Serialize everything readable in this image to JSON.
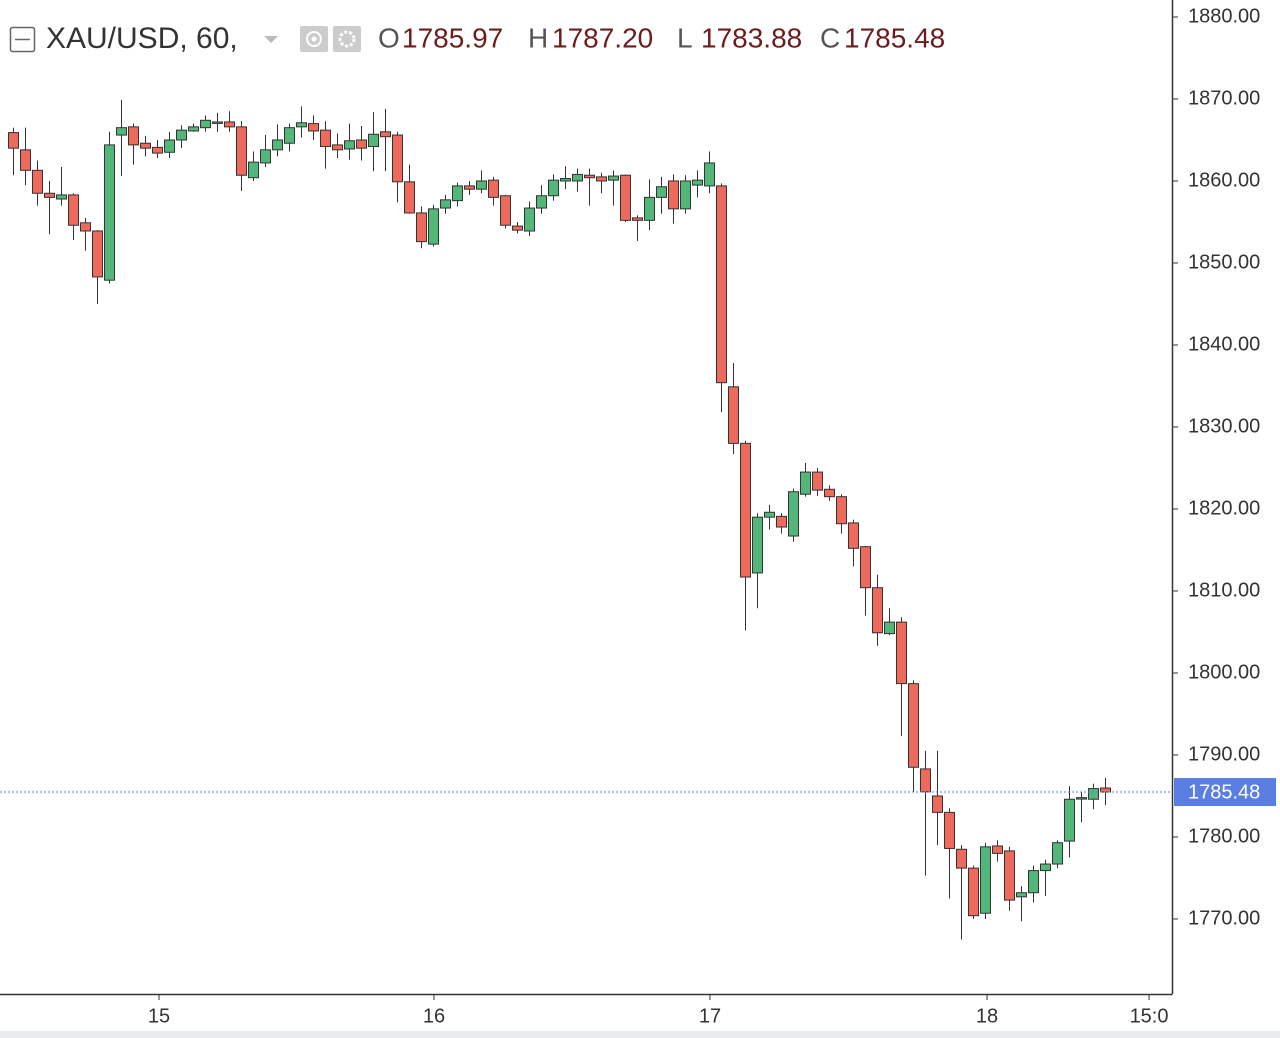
{
  "chart_data": {
    "type": "candlestick",
    "symbol": "XAU/USD, 60,",
    "legend_items": [
      {
        "label": "O",
        "value": "1785.97"
      },
      {
        "label": "H",
        "value": "1787.20"
      },
      {
        "label": "L",
        "value": "1783.88"
      },
      {
        "label": "C",
        "value": "1785.48"
      }
    ],
    "open": [
      1865.9,
      1863.8,
      1861.3,
      1858.5,
      1857.8,
      1858.3,
      1854.9,
      1853.9,
      1847.9,
      1865.6,
      1866.6,
      1864.6,
      1864.1,
      1863.5,
      1865.0,
      1866.1,
      1866.5,
      1867.1,
      1867.2,
      1866.6,
      1860.4,
      1862.2,
      1863.8,
      1864.6,
      1866.6,
      1867.0,
      1866.2,
      1864.4,
      1863.9,
      1865.0,
      1864.2,
      1866.0,
      1865.6,
      1859.9,
      1856.1,
      1852.3,
      1856.7,
      1857.6,
      1859.4,
      1859.0,
      1860.1,
      1858.2,
      1854.5,
      1853.9,
      1856.7,
      1858.2,
      1860.0,
      1860.0,
      1860.7,
      1860.5,
      1860.1,
      1860.7,
      1855.5,
      1855.2,
      1858.0,
      1860.0,
      1856.6,
      1859.5,
      1859.4,
      1859.4,
      1834.9,
      1828.0,
      1812.2,
      1819.0,
      1819.1,
      1816.7,
      1821.8,
      1824.5,
      1822.4,
      1821.5,
      1818.3,
      1815.4,
      1810.4,
      1804.8,
      1806.2,
      1798.7,
      1788.3,
      1785.0,
      1783.0,
      1778.5,
      1776.2,
      1770.7,
      1778.9,
      1778.3,
      1772.7,
      1773.2,
      1775.9,
      1776.7,
      1779.5,
      1784.7,
      1784.6,
      1785.97
    ],
    "high": [
      1866.5,
      1866.5,
      1862.5,
      1860,
      1861.7,
      1858.5,
      1855.5,
      1854,
      1866,
      1869.9,
      1867,
      1865.5,
      1865,
      1866,
      1866.8,
      1867,
      1868,
      1868.3,
      1868.5,
      1867.3,
      1863.6,
      1865.6,
      1866.9,
      1867,
      1869.1,
      1868,
      1867.3,
      1865.8,
      1867,
      1866.7,
      1868.4,
      1868.8,
      1866,
      1862,
      1856.9,
      1857.1,
      1858.3,
      1859.8,
      1860,
      1861.3,
      1860.5,
      1858.3,
      1855,
      1857.5,
      1859.5,
      1860.8,
      1861.8,
      1861.5,
      1861.5,
      1861,
      1861.3,
      1860.8,
      1855.8,
      1860.2,
      1860.5,
      1860.8,
      1860.7,
      1861.3,
      1863.6,
      1859.7,
      1837.8,
      1828.3,
      1819.5,
      1820.5,
      1819.5,
      1822.5,
      1825.6,
      1825,
      1822.9,
      1821.8,
      1818.7,
      1815.5,
      1812,
      1807.9,
      1806.8,
      1799.1,
      1790.5,
      1790.5,
      1783.5,
      1779,
      1776.5,
      1779.3,
      1779.6,
      1778.8,
      1774,
      1776.5,
      1777.2,
      1779.6,
      1786.2,
      1785.5,
      1786.5,
      1787.2
    ],
    "low": [
      1860.7,
      1859.5,
      1857,
      1853.5,
      1857,
      1852.8,
      1851.5,
      1845,
      1847.5,
      1860.6,
      1862,
      1863,
      1862.8,
      1862.8,
      1864,
      1866,
      1866,
      1866,
      1866,
      1858.8,
      1860,
      1861.7,
      1863,
      1863.6,
      1865.3,
      1865,
      1861.5,
      1862.8,
      1862.6,
      1862.5,
      1861.2,
      1861.2,
      1857.4,
      1856,
      1851.8,
      1852,
      1856,
      1856.9,
      1858.3,
      1858.5,
      1857,
      1854.2,
      1853.6,
      1853.3,
      1856,
      1857.6,
      1859,
      1858.7,
      1857,
      1858.5,
      1857,
      1855,
      1852.7,
      1854,
      1856,
      1854.8,
      1856,
      1858,
      1858.5,
      1831.8,
      1826.7,
      1805.2,
      1807.9,
      1817.5,
      1817,
      1816,
      1821.5,
      1821.6,
      1821,
      1817,
      1813,
      1807,
      1803.3,
      1804.6,
      1792.3,
      1785.5,
      1775.3,
      1779,
      1772.5,
      1767.5,
      1770,
      1770,
      1777,
      1771,
      1769.7,
      1772,
      1772.8,
      1776.2,
      1777.5,
      1781.8,
      1783.4,
      1783.88
    ],
    "close": [
      1864.0,
      1861.3,
      1858.5,
      1858.0,
      1858.3,
      1854.6,
      1853.9,
      1848.3,
      1864.4,
      1866.5,
      1864.4,
      1864.0,
      1863.4,
      1865.0,
      1866.2,
      1866.6,
      1867.4,
      1867.2,
      1866.6,
      1860.7,
      1862.3,
      1863.8,
      1865.0,
      1866.5,
      1867.1,
      1866.1,
      1864.2,
      1863.8,
      1864.9,
      1864.0,
      1865.7,
      1865.4,
      1859.9,
      1856.1,
      1852.6,
      1856.6,
      1857.7,
      1859.4,
      1859.0,
      1860.0,
      1858.0,
      1854.6,
      1854.0,
      1856.7,
      1858.2,
      1860.1,
      1860.3,
      1860.8,
      1860.4,
      1860.0,
      1860.6,
      1855.2,
      1855.2,
      1858.0,
      1859.3,
      1856.6,
      1860.0,
      1860.1,
      1862.2,
      1835.4,
      1828.0,
      1811.7,
      1819.0,
      1819.6,
      1817.8,
      1822.1,
      1824.5,
      1822.3,
      1821.5,
      1818.2,
      1815.2,
      1810.4,
      1804.9,
      1806.2,
      1798.7,
      1788.5,
      1785.5,
      1783.0,
      1778.6,
      1776.2,
      1770.4,
      1778.8,
      1778.0,
      1772.3,
      1773.2,
      1775.9,
      1776.7,
      1779.3,
      1784.6,
      1784.8,
      1785.9,
      1785.48
    ],
    "up_color": "#53b77a",
    "down_color": "#ee6a5c",
    "last_price": 1785.48,
    "last_price_color": "#5b7ee5",
    "grid": false,
    "xlim": [
      -1.083,
      96.583
    ],
    "xticks": [
      {
        "value": 12.17,
        "label": "15"
      },
      {
        "value": 35.08,
        "label": "16"
      },
      {
        "value": 58.08,
        "label": "17"
      },
      {
        "value": 81.17,
        "label": "18"
      },
      {
        "value": 94.67,
        "label": "15:0"
      }
    ],
    "ylim": [
      1760.85,
      1882.07
    ],
    "yticks": [
      {
        "value": 1770,
        "label": "1770.00"
      },
      {
        "value": 1780,
        "label": "1780.00"
      },
      {
        "value": 1790,
        "label": "1790.00"
      },
      {
        "value": 1800,
        "label": "1800.00"
      },
      {
        "value": 1810,
        "label": "1810.00"
      },
      {
        "value": 1820,
        "label": "1820.00"
      },
      {
        "value": 1830,
        "label": "1830.00"
      },
      {
        "value": 1840,
        "label": "1840.00"
      },
      {
        "value": 1850,
        "label": "1850.00"
      },
      {
        "value": 1860,
        "label": "1860.00"
      },
      {
        "value": 1870,
        "label": "1870.00"
      },
      {
        "value": 1880,
        "label": "1880.00"
      }
    ]
  }
}
